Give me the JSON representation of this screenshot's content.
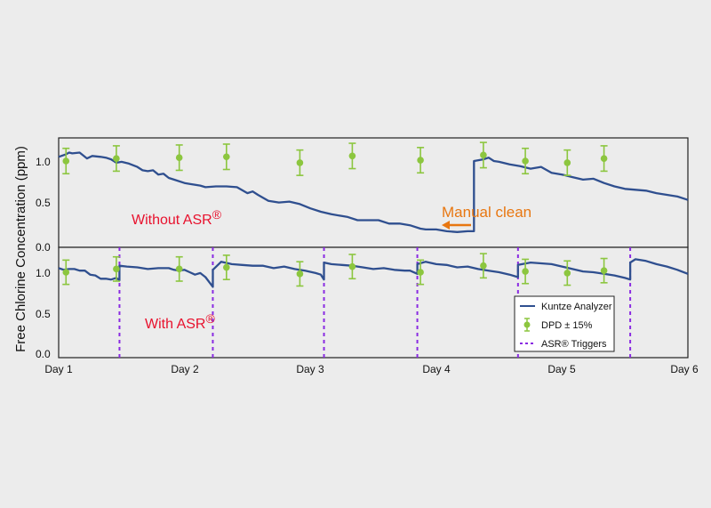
{
  "chart_data": {
    "type": "line",
    "ylabel": "Free Chlorine Concentration (ppm)",
    "x_ticks": [
      "Day 1",
      "Day 2",
      "Day 3",
      "Day 4",
      "Day 5",
      "Day 6"
    ],
    "legend": {
      "position": "bottom-right",
      "entries": [
        "Kuntze Analyzer",
        "DPD ± 15%",
        "ASR® Triggers"
      ]
    },
    "colors": {
      "analyzer": "#2f4f8f",
      "dpd": "#8cc63f",
      "triggers": "#8a2be2",
      "label_red": "#e8112d",
      "annotation_orange": "#e87711"
    },
    "panels": [
      {
        "label_text": "Without ASR",
        "label_sup": "®",
        "ylim": [
          0,
          1.25
        ],
        "y_ticks": [
          {
            "value": 0,
            "label": "0.0"
          },
          {
            "value": 0.5,
            "label": "0.5"
          },
          {
            "value": 1.0,
            "label": "1.0"
          }
        ],
        "analyzer": {
          "x": [
            0.0,
            0.07,
            0.1,
            0.13,
            0.2,
            0.27,
            0.32,
            0.4,
            0.45,
            0.5,
            0.55,
            0.6,
            0.67,
            0.75,
            0.8,
            0.85,
            0.9,
            0.95,
            1.0,
            1.05,
            1.1,
            1.2,
            1.25,
            1.35,
            1.4,
            1.5,
            1.6,
            1.7,
            1.8,
            1.85,
            1.9,
            2.0,
            2.1,
            2.2,
            2.3,
            2.4,
            2.5,
            2.6,
            2.7,
            2.75,
            2.85,
            2.95,
            3.05,
            3.15,
            3.25,
            3.35,
            3.45,
            3.5,
            3.6,
            3.7,
            3.8,
            3.9,
            3.96,
            3.96,
            4.05,
            4.1,
            4.15,
            4.2,
            4.3,
            4.4,
            4.5,
            4.6,
            4.7,
            4.8,
            4.9,
            5.0,
            5.1,
            5.2,
            5.3,
            5.4,
            5.5,
            5.6,
            5.7,
            5.8,
            5.9,
            6.0
          ],
          "y": [
            1.05,
            1.08,
            1.1,
            1.09,
            1.1,
            1.03,
            1.06,
            1.05,
            1.04,
            1.02,
            0.98,
            0.99,
            0.97,
            0.93,
            0.89,
            0.88,
            0.89,
            0.84,
            0.85,
            0.8,
            0.78,
            0.74,
            0.73,
            0.71,
            0.69,
            0.7,
            0.7,
            0.69,
            0.62,
            0.64,
            0.6,
            0.53,
            0.51,
            0.52,
            0.49,
            0.44,
            0.4,
            0.37,
            0.35,
            0.34,
            0.3,
            0.3,
            0.3,
            0.26,
            0.26,
            0.24,
            0.2,
            0.19,
            0.19,
            0.17,
            0.16,
            0.17,
            0.17,
            1.0,
            1.02,
            1.04,
            1.0,
            0.99,
            0.96,
            0.94,
            0.91,
            0.93,
            0.86,
            0.84,
            0.81,
            0.78,
            0.79,
            0.74,
            0.7,
            0.67,
            0.66,
            0.65,
            0.62,
            0.6,
            0.58,
            0.54
          ],
          "step_x": 3.96
        },
        "dpd": {
          "x": [
            0.07,
            0.55,
            1.15,
            1.6,
            2.3,
            2.8,
            3.45,
            4.05,
            4.45,
            4.85,
            5.2
          ],
          "y": [
            1.0,
            1.03,
            1.04,
            1.05,
            0.98,
            1.06,
            1.01,
            1.07,
            1.0,
            0.98,
            1.03
          ],
          "err": [
            0.15,
            0.15,
            0.15,
            0.15,
            0.15,
            0.15,
            0.15,
            0.15,
            0.15,
            0.15,
            0.15
          ]
        },
        "annotation": {
          "text": "Manual clean",
          "x": 4.55,
          "y": 0.4
        }
      },
      {
        "label_text": "With ASR",
        "label_sup": "®",
        "ylim": [
          0,
          1.25
        ],
        "y_ticks": [
          {
            "value": 0,
            "label": "0.0"
          },
          {
            "value": 0.5,
            "label": "0.5"
          },
          {
            "value": 1.0,
            "label": "1.0"
          }
        ],
        "analyzer": {
          "x": [
            0.0,
            0.05,
            0.1,
            0.15,
            0.2,
            0.25,
            0.3,
            0.35,
            0.4,
            0.45,
            0.5,
            0.55,
            0.58,
            0.58,
            0.65,
            0.75,
            0.85,
            0.95,
            1.05,
            1.1,
            1.15,
            1.2,
            1.25,
            1.3,
            1.35,
            1.4,
            1.47,
            1.47,
            1.55,
            1.65,
            1.75,
            1.85,
            1.95,
            2.05,
            2.15,
            2.25,
            2.35,
            2.45,
            2.5,
            2.53,
            2.53,
            2.6,
            2.7,
            2.8,
            2.9,
            3.0,
            3.1,
            3.2,
            3.3,
            3.35,
            3.42,
            3.42,
            3.5,
            3.6,
            3.7,
            3.8,
            3.9,
            4.0,
            4.1,
            4.2,
            4.3,
            4.38,
            4.38,
            4.5,
            4.6,
            4.7,
            4.8,
            4.9,
            5.0,
            5.1,
            5.2,
            5.3,
            5.4,
            5.45,
            5.45,
            5.5,
            5.6,
            5.7,
            5.8,
            5.9,
            6.0
          ],
          "y": [
            1.05,
            1.03,
            1.04,
            1.04,
            1.02,
            1.02,
            0.97,
            0.96,
            0.92,
            0.92,
            0.91,
            0.93,
            0.9,
            1.08,
            1.07,
            1.06,
            1.04,
            1.05,
            1.05,
            1.03,
            1.02,
            1.03,
            1.0,
            0.97,
            0.99,
            0.94,
            0.82,
            1.03,
            1.13,
            1.1,
            1.09,
            1.08,
            1.08,
            1.05,
            1.07,
            1.04,
            1.02,
            0.99,
            0.97,
            0.91,
            1.12,
            1.1,
            1.09,
            1.08,
            1.06,
            1.04,
            1.05,
            1.03,
            1.02,
            1.02,
            0.98,
            1.1,
            1.13,
            1.1,
            1.09,
            1.06,
            1.07,
            1.04,
            1.02,
            1.0,
            0.97,
            0.94,
            1.09,
            1.12,
            1.11,
            1.1,
            1.07,
            1.04,
            1.01,
            1.0,
            0.98,
            0.96,
            0.93,
            0.91,
            1.12,
            1.16,
            1.14,
            1.1,
            1.07,
            1.03,
            0.98
          ],
          "step_x": [
            0.58,
            1.47,
            2.53,
            3.42,
            4.38,
            5.45
          ]
        },
        "dpd": {
          "x": [
            0.07,
            0.55,
            1.15,
            1.6,
            2.3,
            2.8,
            3.45,
            4.05,
            4.45,
            4.85,
            5.2
          ],
          "y": [
            1.0,
            1.04,
            1.04,
            1.06,
            0.98,
            1.07,
            1.0,
            1.08,
            1.01,
            0.99,
            1.02
          ],
          "err": [
            0.15,
            0.15,
            0.15,
            0.15,
            0.15,
            0.15,
            0.15,
            0.15,
            0.15,
            0.15,
            0.15
          ]
        },
        "triggers_x": [
          0.58,
          1.47,
          2.53,
          3.42,
          4.38,
          5.45
        ]
      }
    ]
  }
}
